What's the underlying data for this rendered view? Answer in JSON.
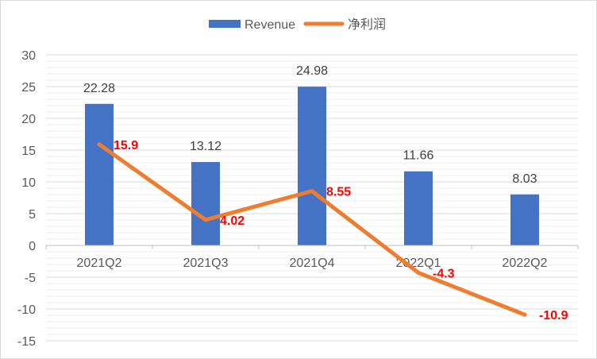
{
  "chart_data": {
    "type": "bar",
    "categories": [
      "2021Q2",
      "2021Q3",
      "2021Q4",
      "2022Q1",
      "2022Q2"
    ],
    "series": [
      {
        "name": "Revenue",
        "type": "bar",
        "values": [
          22.28,
          13.12,
          24.98,
          11.66,
          8.03
        ],
        "color": "#4472c4",
        "labels": [
          "22.28",
          "13.12",
          "24.98",
          "11.66",
          "8.03"
        ]
      },
      {
        "name": "净利润",
        "type": "line",
        "values": [
          15.9,
          4.02,
          8.55,
          -4.3,
          -10.9
        ],
        "color": "#ed7d31",
        "labels": [
          "15.9",
          "4.02",
          "8.55",
          "-4.3",
          "-10.9"
        ],
        "label_color": "#ff0000"
      }
    ],
    "yticks": [
      "30",
      "25",
      "20",
      "15",
      "10",
      "5",
      "0",
      "-5",
      "-10",
      "-15"
    ],
    "ylim": [
      -15,
      30
    ],
    "ystep": 5,
    "grid": true,
    "legend": "top-center"
  }
}
